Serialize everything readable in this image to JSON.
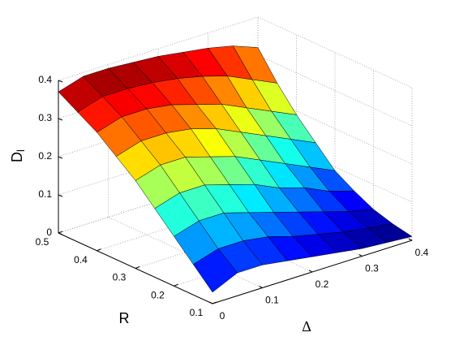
{
  "chart_data": {
    "type": "surface",
    "xlabel": "Δ",
    "ylabel": "R",
    "zlabel": "D",
    "zlabel_sub": "l",
    "x": [
      0,
      0.05,
      0.1,
      0.15,
      0.2,
      0.25,
      0.3,
      0.35,
      0.4
    ],
    "y": [
      0.1,
      0.15,
      0.2,
      0.25,
      0.3,
      0.35,
      0.4,
      0.45,
      0.5
    ],
    "z": [
      [
        0.03,
        0.06,
        0.06,
        0.05,
        0.04,
        0.03,
        0.02,
        0.015,
        0.01
      ],
      [
        0.08,
        0.1,
        0.1,
        0.09,
        0.07,
        0.055,
        0.04,
        0.03,
        0.02
      ],
      [
        0.13,
        0.15,
        0.15,
        0.13,
        0.11,
        0.09,
        0.07,
        0.05,
        0.035
      ],
      [
        0.18,
        0.2,
        0.2,
        0.18,
        0.16,
        0.13,
        0.11,
        0.08,
        0.06
      ],
      [
        0.23,
        0.25,
        0.25,
        0.23,
        0.21,
        0.18,
        0.15,
        0.12,
        0.09
      ],
      [
        0.27,
        0.29,
        0.29,
        0.28,
        0.26,
        0.23,
        0.2,
        0.17,
        0.14
      ],
      [
        0.31,
        0.33,
        0.33,
        0.32,
        0.3,
        0.28,
        0.25,
        0.22,
        0.19
      ],
      [
        0.34,
        0.36,
        0.36,
        0.355,
        0.345,
        0.33,
        0.31,
        0.28,
        0.25
      ],
      [
        0.37,
        0.39,
        0.39,
        0.385,
        0.38,
        0.37,
        0.36,
        0.345,
        0.32
      ]
    ],
    "xlim": [
      0,
      0.4
    ],
    "ylim": [
      0.1,
      0.5
    ],
    "zlim": [
      0,
      0.4
    ],
    "xticks": [
      0,
      0.1,
      0.2,
      0.3,
      0.4
    ],
    "yticks": [
      0.1,
      0.2,
      0.3,
      0.4,
      0.5
    ],
    "zticks": [
      0,
      0.1,
      0.2,
      0.3,
      0.4
    ],
    "grid": true,
    "colormap": "jet"
  }
}
